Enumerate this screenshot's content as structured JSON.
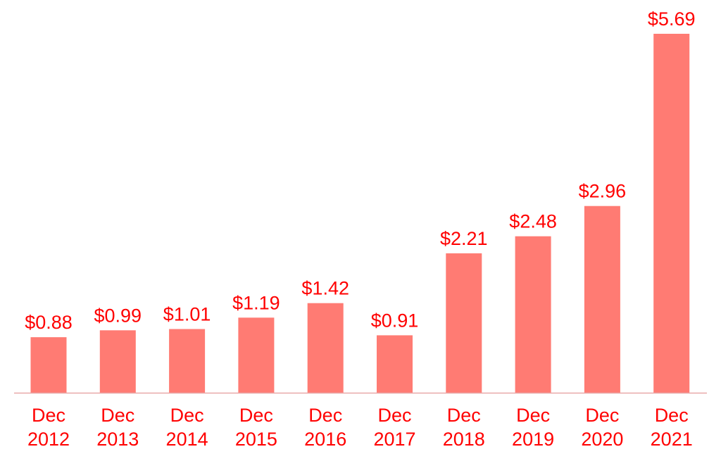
{
  "colors": {
    "bar": "#ff7b73",
    "text": "#ff0000",
    "axis": "#e8a8a8"
  },
  "chart_data": {
    "type": "bar",
    "categories": [
      [
        "Dec",
        "2012"
      ],
      [
        "Dec",
        "2013"
      ],
      [
        "Dec",
        "2014"
      ],
      [
        "Dec",
        "2015"
      ],
      [
        "Dec",
        "2016"
      ],
      [
        "Dec",
        "2017"
      ],
      [
        "Dec",
        "2018"
      ],
      [
        "Dec",
        "2019"
      ],
      [
        "Dec",
        "2020"
      ],
      [
        "Dec",
        "2021"
      ]
    ],
    "values": [
      0.88,
      0.99,
      1.01,
      1.19,
      1.42,
      0.91,
      2.21,
      2.48,
      2.96,
      5.69
    ],
    "data_labels": [
      "$0.88",
      "$0.99",
      "$1.01",
      "$1.19",
      "$1.42",
      "$0.91",
      "$2.21",
      "$2.48",
      "$2.96",
      "$5.69"
    ],
    "ylim": [
      0,
      5.69
    ],
    "grid": false,
    "legend": "none"
  }
}
